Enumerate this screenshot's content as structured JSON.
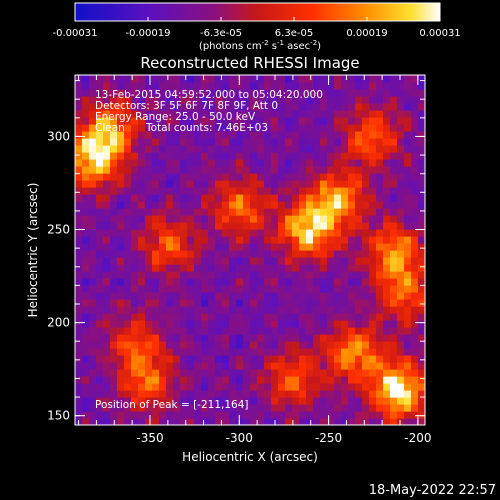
{
  "colorbar": {
    "ticks": [
      "-0.00031",
      "-0.00019",
      "-6.3e-05",
      "6.3e-05",
      "0.00019",
      "0.00031"
    ],
    "units_main": "(photons cm",
    "units_exp1": "-2",
    "units_s": " s",
    "units_exp2": "-1",
    "units_asec": " asec",
    "units_exp3": "-2",
    "units_close": ")"
  },
  "chart_data": {
    "type": "heatmap",
    "title": "Reconstructed RHESSI Image",
    "xlabel": "Heliocentric X (arcsec)",
    "ylabel": "Heliocentric Y (arcsec)",
    "xlim": [
      -392,
      -196
    ],
    "ylim": [
      145,
      333
    ],
    "x_ticks": [
      -350,
      -300,
      -250,
      -200
    ],
    "y_ticks": [
      150,
      200,
      250,
      300
    ],
    "color_range": [
      -0.00031,
      0.00031
    ],
    "annotations": [
      "13-Feb-2015 04:59:52.000 to 05:04:20.000",
      "Detectors: 3F 5F 6F 7F 8F 9F, Att 0",
      "Energy Range: 25.0 - 50.0 keV",
      "Clean",
      "Total counts: 7.46E+03",
      "Position of Peak = [-211,164]"
    ],
    "peak_position": [
      -211,
      164
    ],
    "bright_sources": [
      {
        "x": -382,
        "y": 288,
        "level": 0.85
      },
      {
        "x": -372,
        "y": 305,
        "level": 0.65
      },
      {
        "x": -340,
        "y": 242,
        "level": 0.55
      },
      {
        "x": -300,
        "y": 262,
        "level": 0.6
      },
      {
        "x": -262,
        "y": 250,
        "level": 0.85
      },
      {
        "x": -245,
        "y": 266,
        "level": 0.75
      },
      {
        "x": -225,
        "y": 300,
        "level": 0.6
      },
      {
        "x": -213,
        "y": 238,
        "level": 0.7
      },
      {
        "x": -207,
        "y": 215,
        "level": 0.55
      },
      {
        "x": -270,
        "y": 170,
        "level": 0.55
      },
      {
        "x": -236,
        "y": 184,
        "level": 0.7
      },
      {
        "x": -211,
        "y": 164,
        "level": 1.0
      },
      {
        "x": -352,
        "y": 168,
        "level": 0.55
      },
      {
        "x": -358,
        "y": 190,
        "level": 0.5
      }
    ]
  },
  "timestamp": "18-May-2022 22:57"
}
